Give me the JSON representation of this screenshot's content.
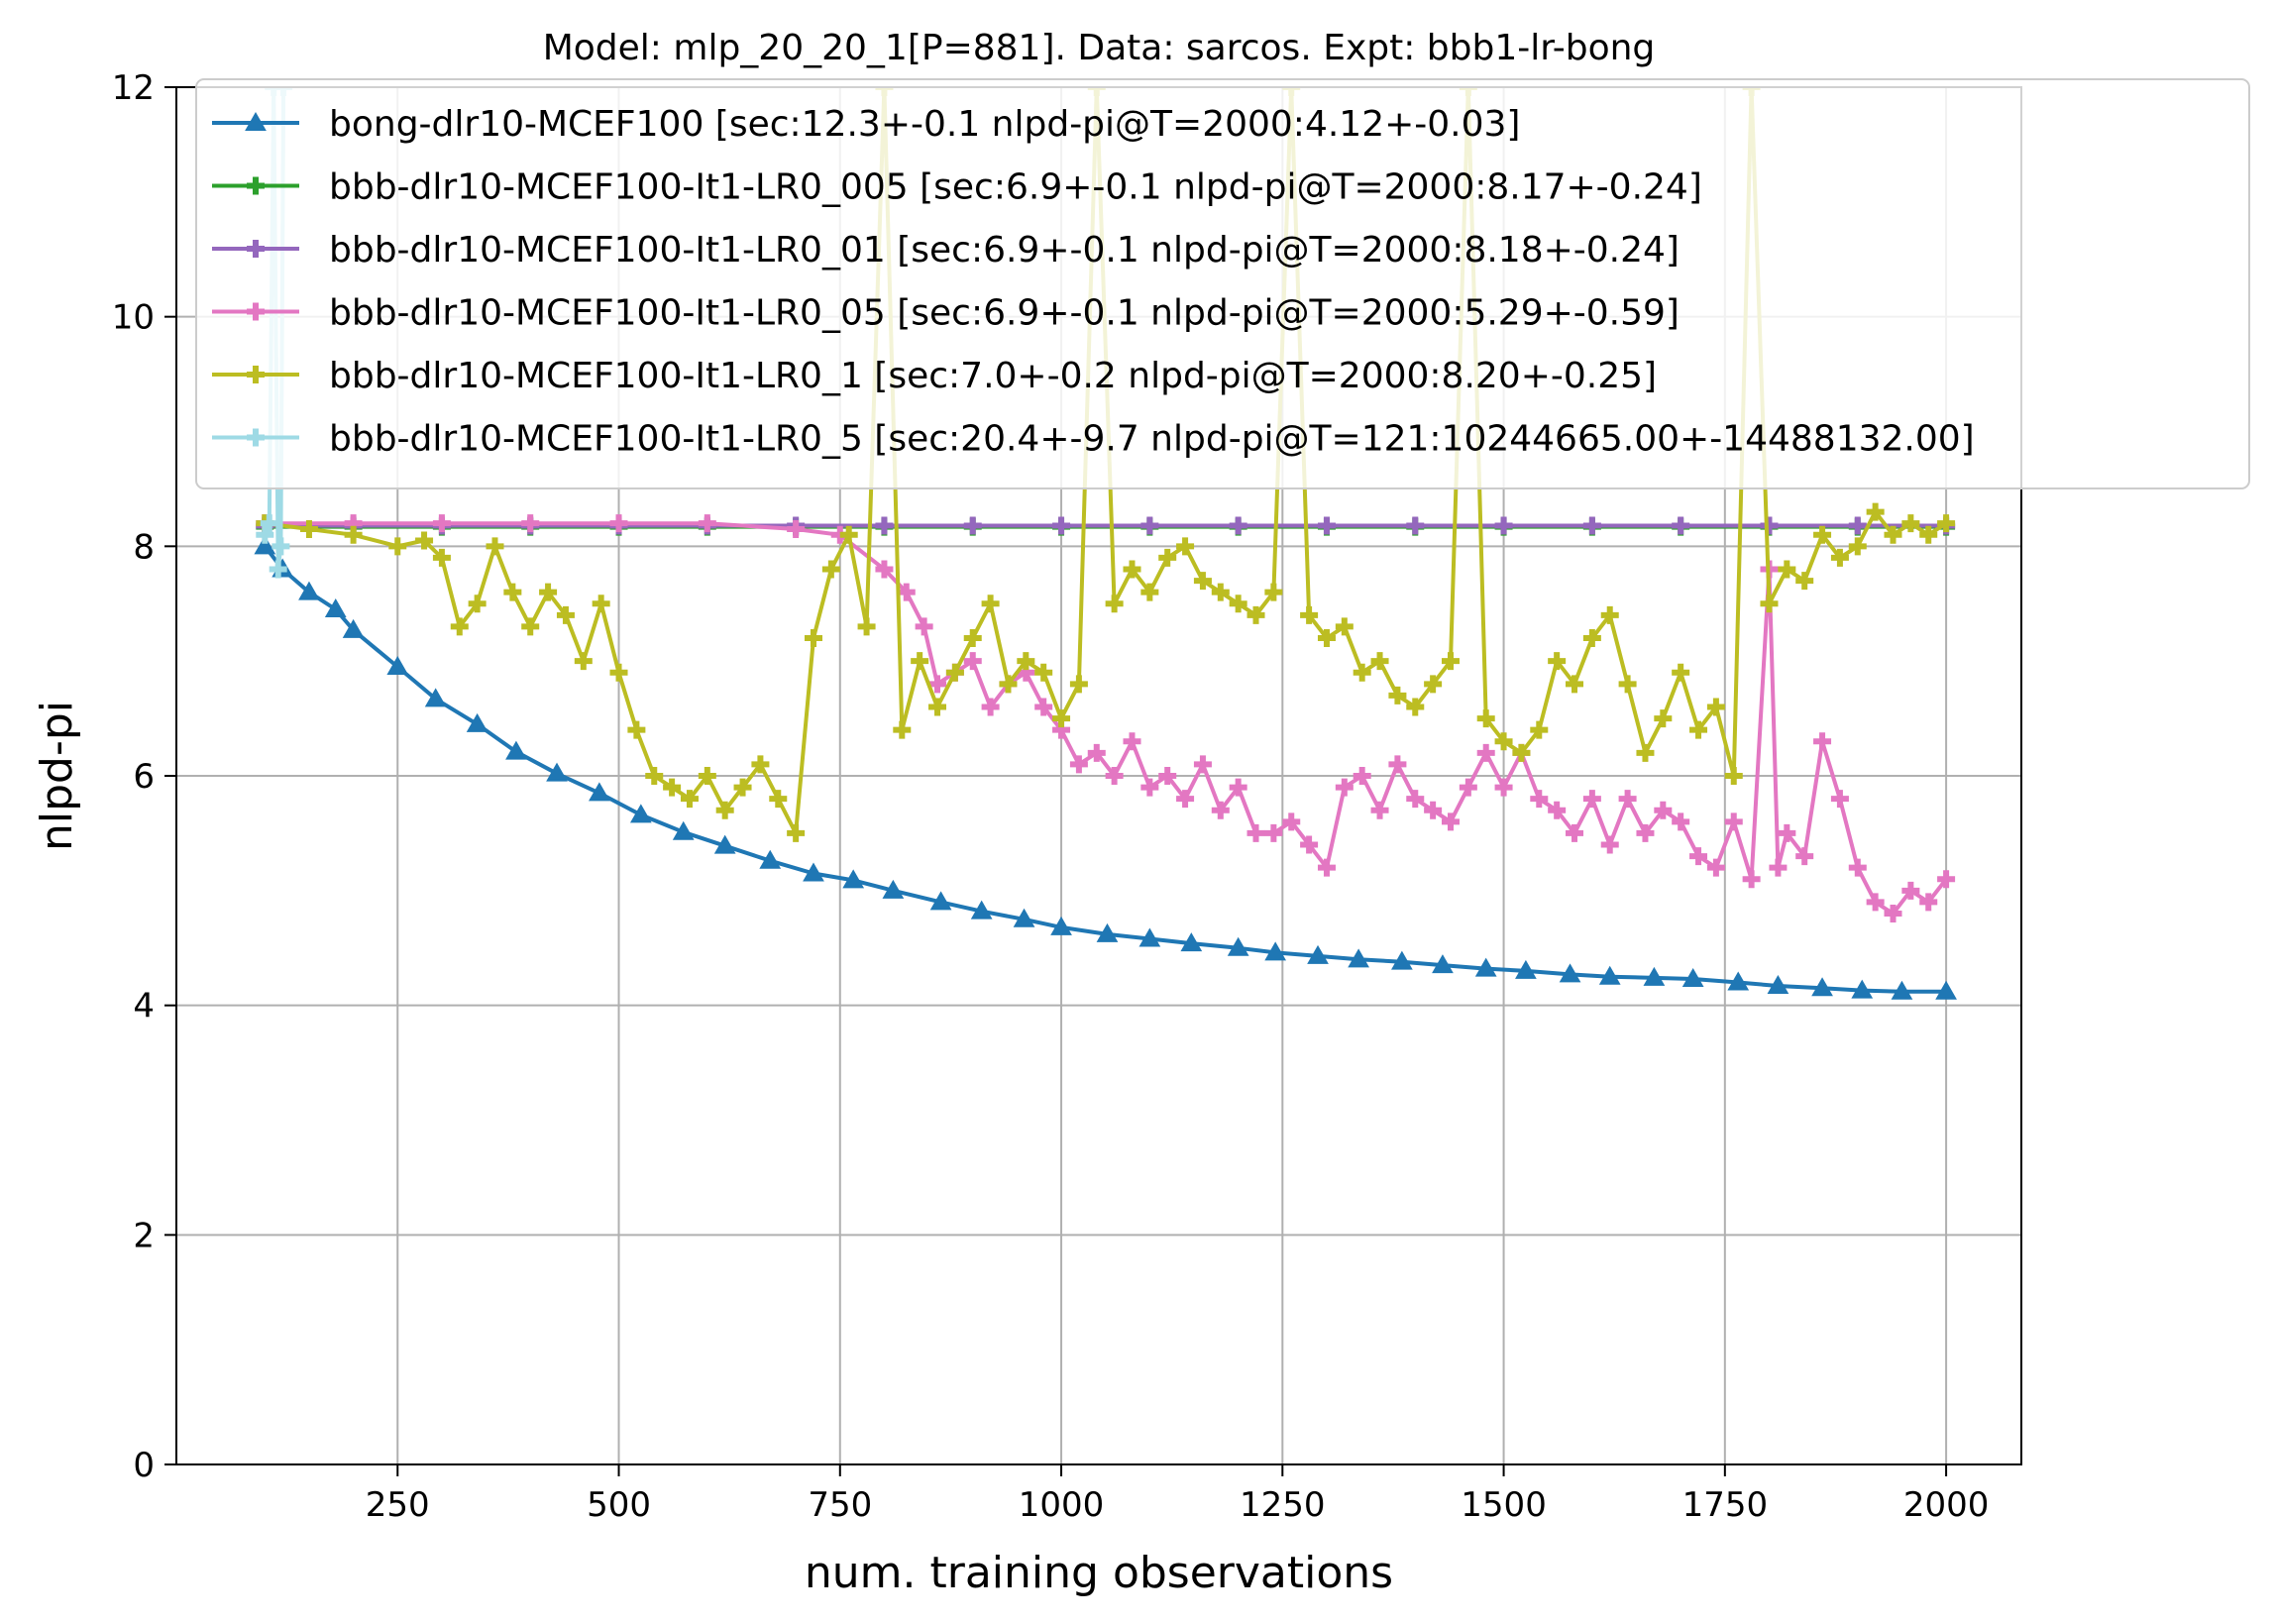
{
  "chart_data": {
    "type": "line",
    "title": "Model: mlp_20_20_1[P=881]. Data: sarcos. Expt: bbb1-lr-bong",
    "xlabel": "num. training observations",
    "ylabel": "nlpd-pi",
    "xlim": [
      0,
      2085
    ],
    "ylim": [
      0,
      12
    ],
    "xticks": [
      250,
      500,
      750,
      1000,
      1250,
      1500,
      1750,
      2000
    ],
    "yticks": [
      0,
      2,
      4,
      6,
      8,
      10,
      12
    ],
    "grid": true,
    "legend_position": "top-right",
    "series": [
      {
        "name": "bong-dlr10-MCEF100 [sec:12.3+-0.1 nlpd-pi@T=2000:4.12+-0.03]",
        "color": "#1f77b4",
        "marker": "triangle",
        "x": [
          100,
          120,
          150,
          180,
          200,
          250,
          293,
          340,
          384,
          430,
          478,
          525,
          573,
          620,
          671,
          720,
          765,
          810,
          864,
          910,
          958,
          1000,
          1052,
          1100,
          1147,
          1200,
          1242,
          1290,
          1336,
          1385,
          1431,
          1480,
          1525,
          1575,
          1620,
          1670,
          1714,
          1765,
          1810,
          1860,
          1905,
          1950,
          2000
        ],
        "y": [
          8.0,
          7.8,
          7.6,
          7.45,
          7.27,
          6.95,
          6.67,
          6.45,
          6.21,
          6.02,
          5.85,
          5.66,
          5.51,
          5.39,
          5.26,
          5.15,
          5.09,
          5.0,
          4.9,
          4.82,
          4.75,
          4.68,
          4.62,
          4.58,
          4.54,
          4.5,
          4.46,
          4.43,
          4.4,
          4.38,
          4.35,
          4.32,
          4.3,
          4.27,
          4.25,
          4.24,
          4.23,
          4.2,
          4.17,
          4.15,
          4.13,
          4.12,
          4.12
        ]
      },
      {
        "name": "bbb-dlr10-MCEF100-It1-LR0_005 [sec:6.9+-0.1 nlpd-pi@T=2000:8.17+-0.24]",
        "color": "#2ca02c",
        "marker": "plus",
        "x": [
          100,
          200,
          300,
          400,
          500,
          600,
          700,
          800,
          900,
          1000,
          1100,
          1200,
          1300,
          1400,
          1500,
          1600,
          1700,
          1800,
          1900,
          2000
        ],
        "y": [
          8.17,
          8.17,
          8.17,
          8.17,
          8.17,
          8.17,
          8.17,
          8.17,
          8.17,
          8.17,
          8.17,
          8.17,
          8.17,
          8.17,
          8.17,
          8.17,
          8.17,
          8.17,
          8.17,
          8.17
        ]
      },
      {
        "name": "bbb-dlr10-MCEF100-It1-LR0_01 [sec:6.9+-0.1 nlpd-pi@T=2000:8.18+-0.24]",
        "color": "#9467bd",
        "marker": "plus",
        "x": [
          100,
          200,
          300,
          400,
          500,
          600,
          700,
          800,
          900,
          1000,
          1100,
          1200,
          1300,
          1400,
          1500,
          1600,
          1700,
          1800,
          1900,
          2000
        ],
        "y": [
          8.18,
          8.18,
          8.18,
          8.18,
          8.18,
          8.18,
          8.18,
          8.18,
          8.18,
          8.18,
          8.18,
          8.18,
          8.18,
          8.18,
          8.18,
          8.18,
          8.18,
          8.18,
          8.18,
          8.18
        ]
      },
      {
        "name": "bbb-dlr10-MCEF100-It1-LR0_05 [sec:6.9+-0.1 nlpd-pi@T=2000:5.29+-0.59]",
        "color": "#e377c2",
        "marker": "plus",
        "x": [
          100,
          200,
          300,
          400,
          500,
          600,
          700,
          750,
          800,
          825,
          845,
          860,
          880,
          900,
          920,
          940,
          960,
          980,
          1000,
          1020,
          1040,
          1060,
          1080,
          1100,
          1120,
          1140,
          1160,
          1180,
          1200,
          1220,
          1240,
          1260,
          1280,
          1300,
          1320,
          1340,
          1360,
          1380,
          1400,
          1420,
          1440,
          1460,
          1480,
          1500,
          1520,
          1540,
          1560,
          1580,
          1600,
          1620,
          1640,
          1660,
          1680,
          1700,
          1720,
          1740,
          1760,
          1780,
          1800,
          1810,
          1820,
          1840,
          1860,
          1880,
          1900,
          1920,
          1940,
          1960,
          1980,
          2000
        ],
        "y": [
          8.2,
          8.2,
          8.2,
          8.2,
          8.2,
          8.2,
          8.15,
          8.1,
          7.8,
          7.6,
          7.3,
          6.8,
          6.9,
          7.0,
          6.6,
          6.8,
          6.9,
          6.6,
          6.4,
          6.1,
          6.2,
          6.0,
          6.3,
          5.9,
          6.0,
          5.8,
          6.1,
          5.7,
          5.9,
          5.5,
          5.5,
          5.6,
          5.4,
          5.2,
          5.9,
          6.0,
          5.7,
          6.1,
          5.8,
          5.7,
          5.6,
          5.9,
          6.2,
          5.9,
          6.2,
          5.8,
          5.7,
          5.5,
          5.8,
          5.4,
          5.8,
          5.5,
          5.7,
          5.6,
          5.3,
          5.2,
          5.6,
          5.1,
          7.8,
          5.2,
          5.5,
          5.3,
          6.3,
          5.8,
          5.2,
          4.9,
          4.8,
          5.0,
          4.9,
          5.1
        ]
      },
      {
        "name": "bbb-dlr10-MCEF100-It1-LR0_1 [sec:7.0+-0.2 nlpd-pi@T=2000:8.20+-0.25]",
        "color": "#bcbd22",
        "marker": "plus",
        "x": [
          100,
          150,
          200,
          250,
          280,
          300,
          320,
          340,
          360,
          380,
          400,
          420,
          440,
          460,
          480,
          500,
          520,
          540,
          560,
          580,
          600,
          620,
          640,
          660,
          680,
          700,
          720,
          740,
          760,
          780,
          800,
          820,
          840,
          860,
          880,
          900,
          920,
          940,
          960,
          980,
          1000,
          1020,
          1040,
          1060,
          1080,
          1100,
          1120,
          1140,
          1160,
          1180,
          1200,
          1220,
          1240,
          1260,
          1280,
          1300,
          1320,
          1340,
          1360,
          1380,
          1400,
          1420,
          1440,
          1460,
          1480,
          1500,
          1520,
          1540,
          1560,
          1580,
          1600,
          1620,
          1640,
          1660,
          1680,
          1700,
          1720,
          1740,
          1760,
          1780,
          1800,
          1820,
          1840,
          1860,
          1880,
          1900,
          1920,
          1940,
          1960,
          1980,
          2000
        ],
        "y": [
          8.2,
          8.15,
          8.1,
          8.0,
          8.05,
          7.9,
          7.3,
          7.5,
          8.0,
          7.6,
          7.3,
          7.6,
          7.4,
          7.0,
          7.5,
          6.9,
          6.4,
          6.0,
          5.9,
          5.8,
          6.0,
          5.7,
          5.9,
          6.1,
          5.8,
          5.5,
          7.2,
          7.8,
          8.1,
          7.3,
          12.0,
          6.4,
          7.0,
          6.6,
          6.9,
          7.2,
          7.5,
          6.8,
          7.0,
          6.9,
          6.5,
          6.8,
          12.0,
          7.5,
          7.8,
          7.6,
          7.9,
          8.0,
          7.7,
          7.6,
          7.5,
          7.4,
          7.6,
          12.0,
          7.4,
          7.2,
          7.3,
          6.9,
          7.0,
          6.7,
          6.6,
          6.8,
          7.0,
          12.0,
          6.5,
          6.3,
          6.2,
          6.4,
          7.0,
          6.8,
          7.2,
          7.4,
          6.8,
          6.2,
          6.5,
          6.9,
          6.4,
          6.6,
          6.0,
          12.0,
          7.5,
          7.8,
          7.7,
          8.1,
          7.9,
          8.0,
          8.3,
          8.1,
          8.2,
          8.1,
          8.2
        ]
      },
      {
        "name": "bbb-dlr10-MCEF100-It1-LR0_5 [sec:20.4+-9.7 nlpd-pi@T=121:10244665.00+-14488132.00]",
        "color": "#9edae5",
        "marker": "plus",
        "x": [
          100,
          105,
          110,
          115,
          118,
          121
        ],
        "y": [
          8.1,
          8.2,
          12.0,
          7.8,
          8.0,
          12.0
        ]
      }
    ]
  }
}
